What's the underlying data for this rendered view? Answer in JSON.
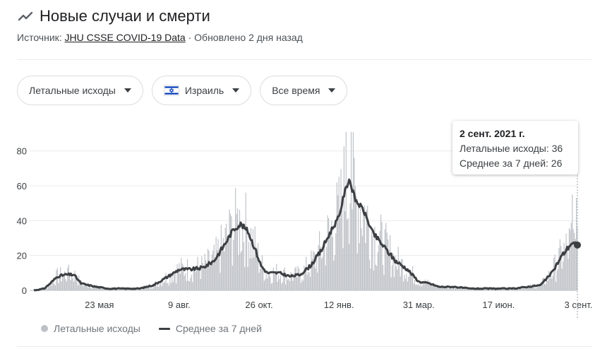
{
  "header": {
    "title": "Новые случаи и смерти",
    "icon": "trending-line-icon",
    "source_prefix": "Источник: ",
    "source_link": "JHU CSSE COVID-19 Data",
    "source_suffix": " · Обновлено 2 дня назад"
  },
  "filters": {
    "metric": "Летальные исходы",
    "country": "Израиль",
    "country_flag": "israel-flag-icon",
    "period": "Все время"
  },
  "tooltip": {
    "date": "2 сент. 2021 г.",
    "deaths_label": "Летальные исходы: 36",
    "avg_label": "Среднее за 7 дней: 26"
  },
  "legend": {
    "deaths": "Летальные исходы",
    "average": "Среднее за 7 дней"
  },
  "colors": {
    "bars": "#bdc1c6",
    "average_line": "#3c4043",
    "grid": "#ebebeb"
  },
  "chart_data": {
    "type": "bar",
    "title": "",
    "xlabel": "",
    "ylabel": "",
    "ylim": [
      0,
      90
    ],
    "yticks": [
      0,
      20,
      40,
      60,
      80
    ],
    "x_tick_labels": [
      "23 мая",
      "9 авг.",
      "26 окт.",
      "12 янв.",
      "31 мар.",
      "17 июн.",
      "3 сент."
    ],
    "grid": true,
    "legend_position": "bottom-left",
    "start_date": "2020-03-20",
    "end_date": "2021-09-02",
    "x_ticks": [
      {
        "label": "23 мая",
        "date": "2020-05-23"
      },
      {
        "label": "9 авг.",
        "date": "2020-08-09"
      },
      {
        "label": "26 окт.",
        "date": "2020-10-26"
      },
      {
        "label": "12 янв.",
        "date": "2021-01-12"
      },
      {
        "label": "31 мар.",
        "date": "2021-03-31"
      },
      {
        "label": "17 июн.",
        "date": "2021-06-17"
      },
      {
        "label": "3 сент.",
        "date": "2021-09-03"
      }
    ],
    "series": [
      {
        "name": "Среднее за 7 дней",
        "type": "line",
        "points": [
          [
            "2020-03-20",
            0
          ],
          [
            "2020-03-30",
            1
          ],
          [
            "2020-04-05",
            4
          ],
          [
            "2020-04-12",
            8
          ],
          [
            "2020-04-20",
            9
          ],
          [
            "2020-04-28",
            9
          ],
          [
            "2020-05-05",
            4
          ],
          [
            "2020-05-12",
            3
          ],
          [
            "2020-05-20",
            2
          ],
          [
            "2020-06-01",
            1
          ],
          [
            "2020-06-15",
            1
          ],
          [
            "2020-07-01",
            1
          ],
          [
            "2020-07-15",
            3
          ],
          [
            "2020-08-01",
            9
          ],
          [
            "2020-08-09",
            12
          ],
          [
            "2020-08-20",
            12
          ],
          [
            "2020-09-01",
            13
          ],
          [
            "2020-09-12",
            17
          ],
          [
            "2020-09-22",
            26
          ],
          [
            "2020-10-01",
            35
          ],
          [
            "2020-10-08",
            38
          ],
          [
            "2020-10-15",
            34
          ],
          [
            "2020-10-22",
            24
          ],
          [
            "2020-10-28",
            14
          ],
          [
            "2020-11-03",
            10
          ],
          [
            "2020-11-15",
            10
          ],
          [
            "2020-11-25",
            8
          ],
          [
            "2020-12-05",
            9
          ],
          [
            "2020-12-15",
            14
          ],
          [
            "2020-12-25",
            22
          ],
          [
            "2021-01-05",
            35
          ],
          [
            "2021-01-12",
            42
          ],
          [
            "2021-01-17",
            55
          ],
          [
            "2021-01-22",
            64
          ],
          [
            "2021-01-28",
            52
          ],
          [
            "2021-02-05",
            46
          ],
          [
            "2021-02-14",
            33
          ],
          [
            "2021-02-25",
            25
          ],
          [
            "2021-03-08",
            17
          ],
          [
            "2021-03-20",
            12
          ],
          [
            "2021-03-31",
            5
          ],
          [
            "2021-04-10",
            4
          ],
          [
            "2021-04-20",
            2
          ],
          [
            "2021-05-05",
            2
          ],
          [
            "2021-05-20",
            1
          ],
          [
            "2021-06-01",
            1
          ],
          [
            "2021-06-17",
            1
          ],
          [
            "2021-07-01",
            1
          ],
          [
            "2021-07-15",
            2
          ],
          [
            "2021-07-28",
            3
          ],
          [
            "2021-08-08",
            10
          ],
          [
            "2021-08-18",
            20
          ],
          [
            "2021-08-27",
            27
          ],
          [
            "2021-09-02",
            26
          ]
        ]
      },
      {
        "name": "Летальные исходы",
        "type": "bar",
        "daily_peaks_sample": [
          [
            "2020-04-22",
            13
          ],
          [
            "2020-09-28",
            44
          ],
          [
            "2020-10-05",
            47
          ],
          [
            "2021-01-19",
            91
          ],
          [
            "2021-01-24",
            91
          ],
          [
            "2021-08-28",
            55
          ],
          [
            "2021-09-01",
            53
          ],
          [
            "2021-09-02",
            36
          ]
        ]
      }
    ]
  }
}
